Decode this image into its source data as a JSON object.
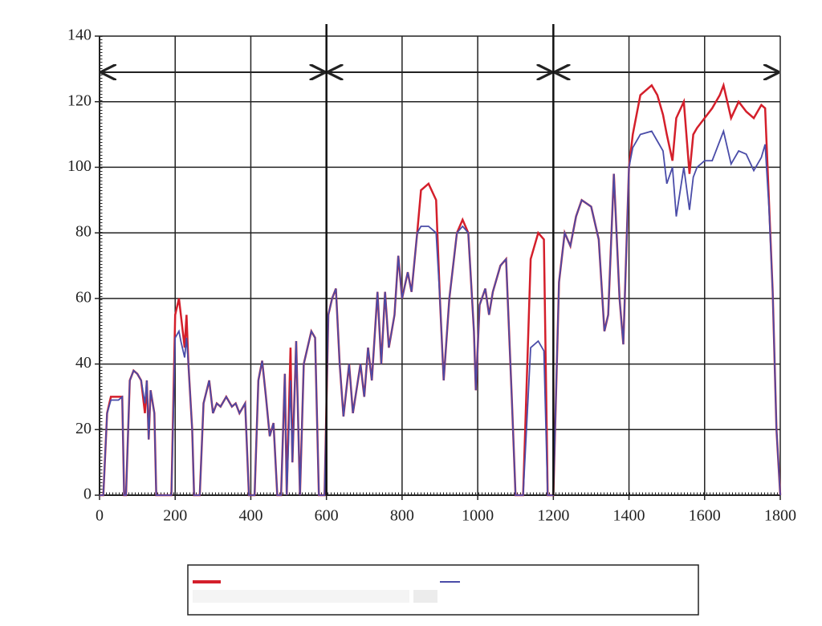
{
  "chart_data": {
    "type": "line",
    "x": [
      0,
      10,
      20,
      30,
      50,
      60,
      65,
      70,
      80,
      90,
      100,
      110,
      120,
      125,
      130,
      135,
      145,
      150,
      190,
      200,
      210,
      215,
      225,
      230,
      235,
      245,
      250,
      265,
      275,
      290,
      300,
      310,
      320,
      335,
      350,
      360,
      370,
      385,
      395,
      410,
      420,
      430,
      440,
      450,
      460,
      470,
      480,
      490,
      495,
      505,
      510,
      520,
      530,
      540,
      550,
      560,
      570,
      580,
      595,
      605,
      615,
      625,
      635,
      645,
      660,
      670,
      690,
      700,
      710,
      720,
      735,
      745,
      755,
      765,
      780,
      790,
      800,
      815,
      825,
      840,
      850,
      870,
      890,
      900,
      910,
      925,
      945,
      960,
      975,
      990,
      995,
      1005,
      1020,
      1030,
      1040,
      1060,
      1075,
      1090,
      1100,
      1120,
      1140,
      1160,
      1175,
      1185,
      1200,
      1215,
      1230,
      1245,
      1260,
      1275,
      1300,
      1320,
      1335,
      1345,
      1360,
      1375,
      1385,
      1400,
      1410,
      1430,
      1460,
      1475,
      1490,
      1500,
      1515,
      1525,
      1545,
      1560,
      1570,
      1580,
      1600,
      1620,
      1640,
      1650,
      1670,
      1690,
      1710,
      1730,
      1750,
      1760,
      1770,
      1780,
      1790,
      1800
    ],
    "series": [
      {
        "color": "#d41f2b",
        "values": [
          0,
          0,
          25,
          30,
          30,
          30,
          0,
          0,
          35,
          38,
          37,
          35,
          25,
          35,
          17,
          32,
          25,
          0,
          0,
          55,
          60,
          55,
          45,
          55,
          40,
          20,
          0,
          0,
          28,
          35,
          25,
          28,
          27,
          30,
          27,
          28,
          25,
          28,
          0,
          0,
          35,
          41,
          30,
          18,
          22,
          0,
          0,
          37,
          0,
          45,
          10,
          47,
          0,
          40,
          45,
          50,
          48,
          0,
          0,
          55,
          60,
          63,
          40,
          24,
          40,
          25,
          40,
          30,
          45,
          35,
          62,
          40,
          62,
          45,
          55,
          73,
          60,
          68,
          62,
          80,
          93,
          95,
          90,
          60,
          35,
          60,
          80,
          84,
          80,
          50,
          32,
          58,
          63,
          55,
          62,
          70,
          72,
          30,
          0,
          0,
          72,
          80,
          78,
          0,
          0,
          65,
          80,
          76,
          85,
          90,
          88,
          78,
          50,
          55,
          98,
          60,
          46,
          100,
          110,
          122,
          125,
          122,
          116,
          110,
          102,
          115,
          120,
          98,
          110,
          112,
          115,
          118,
          122,
          125,
          115,
          120,
          117,
          115,
          119,
          118,
          90,
          62,
          20,
          0
        ]
      },
      {
        "color": "#4a4ca8",
        "values": [
          0,
          0,
          25,
          29,
          29,
          30,
          0,
          0,
          35,
          38,
          37,
          35,
          28,
          35,
          17,
          32,
          25,
          0,
          0,
          48,
          50,
          47,
          42,
          48,
          40,
          20,
          0,
          0,
          28,
          35,
          25,
          28,
          27,
          30,
          27,
          28,
          25,
          28,
          0,
          0,
          35,
          41,
          30,
          18,
          22,
          0,
          0,
          37,
          0,
          35,
          10,
          47,
          0,
          40,
          45,
          50,
          48,
          0,
          0,
          55,
          60,
          63,
          40,
          24,
          40,
          25,
          40,
          30,
          45,
          35,
          62,
          40,
          62,
          45,
          55,
          73,
          60,
          68,
          62,
          80,
          82,
          82,
          80,
          60,
          35,
          60,
          80,
          82,
          80,
          50,
          32,
          58,
          63,
          55,
          62,
          70,
          72,
          30,
          0,
          0,
          45,
          47,
          44,
          0,
          0,
          65,
          80,
          76,
          85,
          90,
          88,
          78,
          50,
          55,
          98,
          60,
          46,
          100,
          106,
          110,
          111,
          108,
          105,
          95,
          100,
          85,
          100,
          87,
          97,
          100,
          102,
          102,
          108,
          111,
          101,
          105,
          104,
          99,
          103,
          107,
          88,
          62,
          20,
          0
        ]
      }
    ],
    "xlim": [
      0,
      1800
    ],
    "xticks": [
      0,
      200,
      400,
      600,
      800,
      1000,
      1200,
      1400,
      1600,
      1800
    ],
    "ylim": [
      0,
      140
    ],
    "yticks": [
      0,
      20,
      40,
      60,
      80,
      100,
      120,
      140
    ],
    "grid": true,
    "sections": [
      0,
      600,
      1200,
      1800
    ]
  }
}
